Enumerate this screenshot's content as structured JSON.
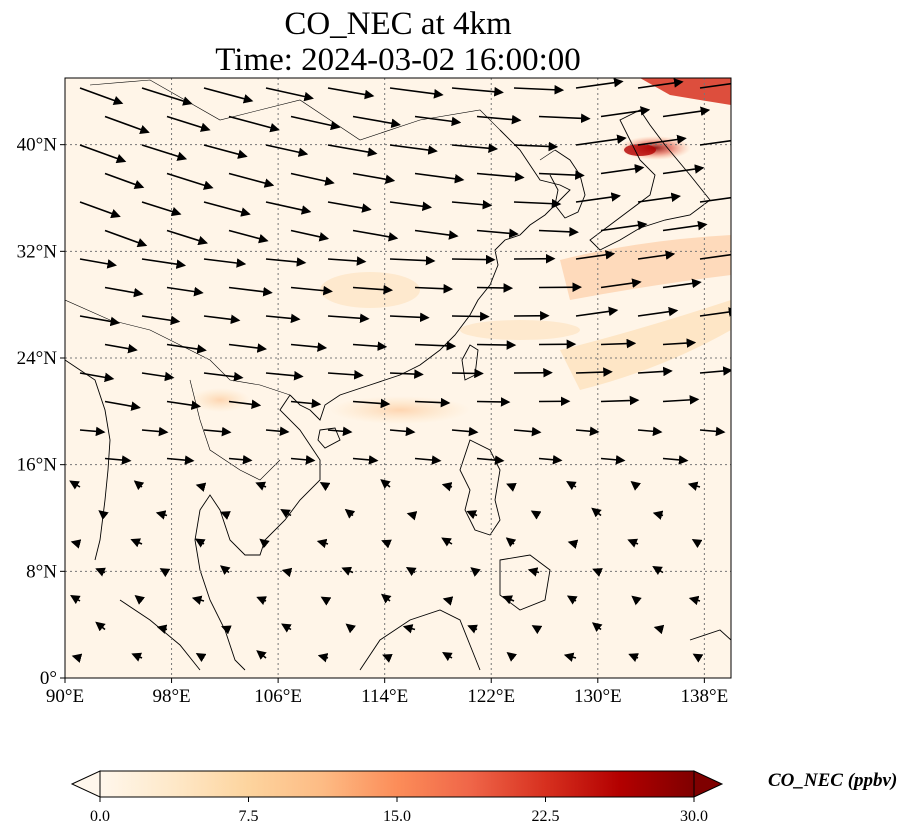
{
  "title": {
    "line1": "CO_NEC at 4km",
    "line2": "Time: 2024-03-02 16:00:00"
  },
  "map": {
    "lon_range": [
      90,
      140
    ],
    "lat_range": [
      0,
      45
    ],
    "lon_ticks": [
      "90°E",
      "98°E",
      "106°E",
      "114°E",
      "122°E",
      "130°E",
      "138°E"
    ],
    "lat_ticks": [
      "0°",
      "8°N",
      "16°N",
      "24°N",
      "32°N",
      "40°N"
    ],
    "lon_values": [
      90,
      98,
      106,
      114,
      122,
      130,
      138
    ],
    "lat_values": [
      0,
      8,
      16,
      24,
      32,
      40
    ],
    "gridlines": "dotted",
    "background_color": "#fff5e8",
    "wind_arrows": "black vectors; strong west/northwesterly flow north of 20°N, weak easterly flow to the south"
  },
  "colorbar": {
    "label": "CO_NEC (ppbv)",
    "ticks": [
      "0.0",
      "7.5",
      "15.0",
      "22.5",
      "30.0"
    ],
    "tick_values": [
      0,
      7.5,
      15,
      22.5,
      30
    ],
    "range": [
      0,
      30
    ],
    "colormap": "OrRd",
    "extend": "both",
    "colors": [
      "#fff7ec",
      "#fee8c8",
      "#fdd49e",
      "#fdbb84",
      "#fc8d59",
      "#ef6548",
      "#d7301f",
      "#b30000",
      "#7f0000"
    ]
  }
}
